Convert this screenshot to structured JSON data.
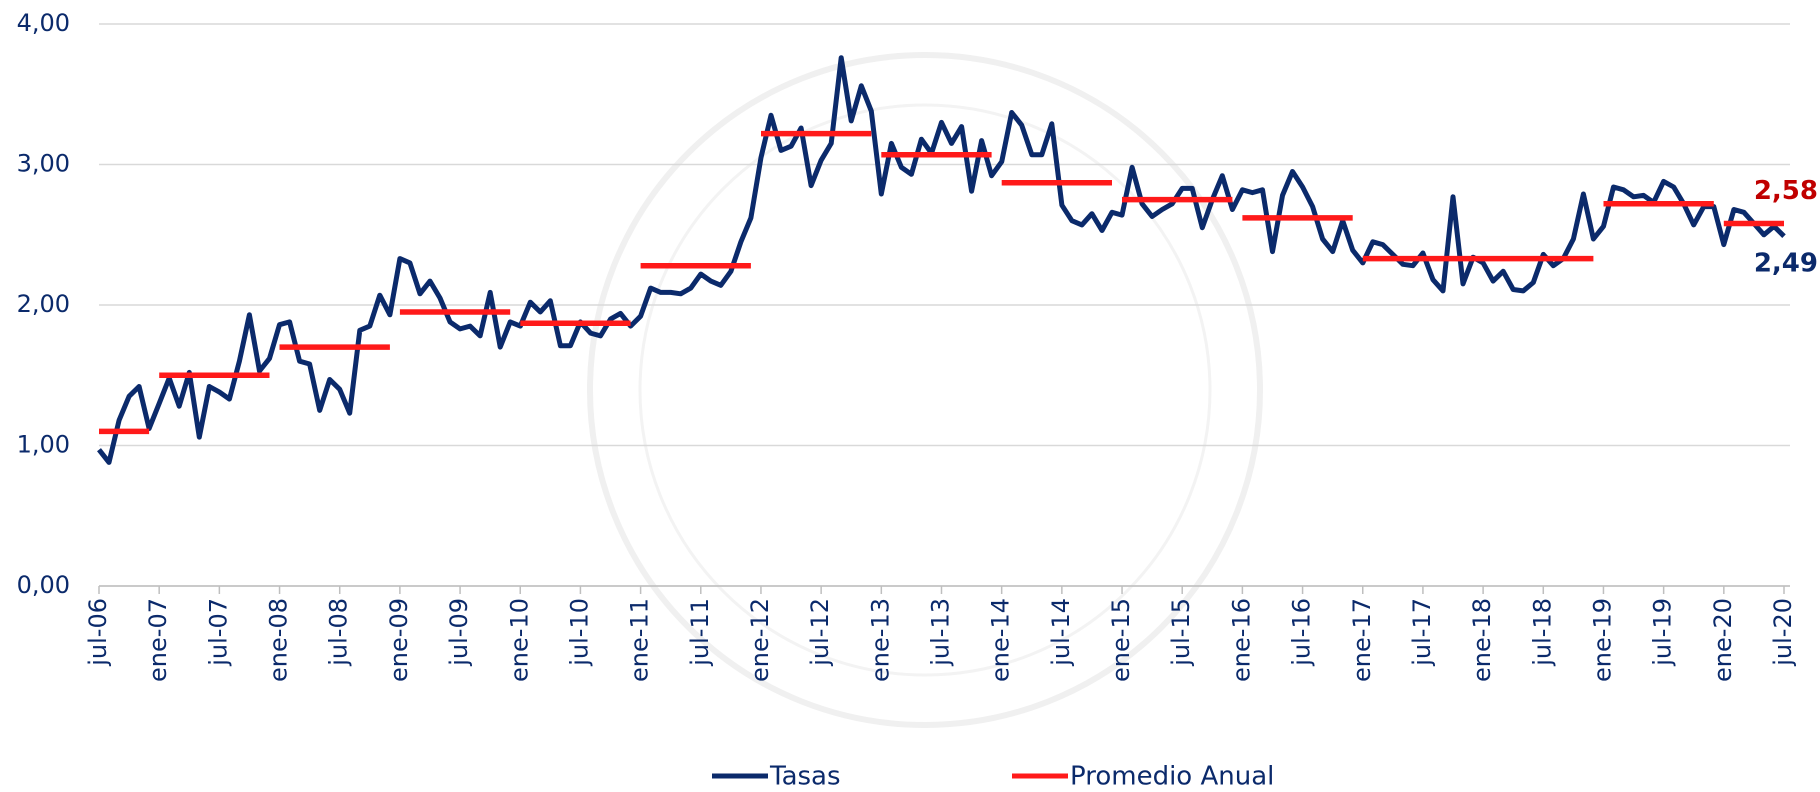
{
  "chart_data": {
    "type": "line",
    "categories": [
      "jul-06",
      null,
      null,
      null,
      null,
      null,
      "ene-07",
      null,
      null,
      null,
      null,
      null,
      "jul-07",
      null,
      null,
      null,
      null,
      null,
      "ene-08",
      null,
      null,
      null,
      null,
      null,
      "jul-08",
      null,
      null,
      null,
      null,
      null,
      "ene-09",
      null,
      null,
      null,
      null,
      null,
      "jul-09",
      null,
      null,
      null,
      null,
      null,
      "ene-10",
      null,
      null,
      null,
      null,
      null,
      "jul-10",
      null,
      null,
      null,
      null,
      null,
      "ene-11",
      null,
      null,
      null,
      null,
      null,
      "jul-11",
      null,
      null,
      null,
      null,
      null,
      "ene-12",
      null,
      null,
      null,
      null,
      null,
      "jul-12",
      null,
      null,
      null,
      null,
      null,
      "ene-13",
      null,
      null,
      null,
      null,
      null,
      "jul-13",
      null,
      null,
      null,
      null,
      null,
      "ene-14",
      null,
      null,
      null,
      null,
      null,
      "jul-14",
      null,
      null,
      null,
      null,
      null,
      "ene-15",
      null,
      null,
      null,
      null,
      null,
      "jul-15",
      null,
      null,
      null,
      null,
      null,
      "ene-16",
      null,
      null,
      null,
      null,
      null,
      "jul-16",
      null,
      null,
      null,
      null,
      null,
      "ene-17",
      null,
      null,
      null,
      null,
      null,
      "jul-17",
      null,
      null,
      null,
      null,
      null,
      "ene-18",
      null,
      null,
      null,
      null,
      null,
      "jul-18",
      null,
      null,
      null,
      null,
      null,
      "ene-19",
      null,
      null,
      null,
      null,
      null,
      "jul-19",
      null,
      null,
      null,
      null,
      null,
      "ene-20",
      null,
      null,
      null,
      null,
      null,
      "jul-20"
    ],
    "series": [
      {
        "name": "Tasas",
        "color": "#0b2a6b",
        "label_color": "#0b2a6b",
        "values": [
          0.97,
          0.88,
          1.18,
          1.35,
          1.42,
          1.12,
          1.3,
          1.48,
          1.28,
          1.52,
          1.06,
          1.42,
          1.38,
          1.33,
          1.6,
          1.93,
          1.53,
          1.62,
          1.86,
          1.88,
          1.6,
          1.58,
          1.25,
          1.47,
          1.4,
          1.23,
          1.82,
          1.85,
          2.07,
          1.93,
          2.33,
          2.3,
          2.08,
          2.17,
          2.05,
          1.88,
          1.83,
          1.85,
          1.78,
          2.09,
          1.7,
          1.88,
          1.85,
          2.02,
          1.95,
          2.03,
          1.71,
          1.71,
          1.88,
          1.8,
          1.78,
          1.9,
          1.94,
          1.85,
          1.92,
          2.12,
          2.09,
          2.09,
          2.08,
          2.12,
          2.22,
          2.17,
          2.14,
          2.24,
          2.45,
          2.62,
          3.05,
          3.35,
          3.1,
          3.13,
          3.26,
          2.85,
          3.03,
          3.15,
          3.76,
          3.31,
          3.56,
          3.38,
          2.79,
          3.15,
          2.98,
          2.93,
          3.18,
          3.08,
          3.3,
          3.15,
          3.27,
          2.81,
          3.17,
          2.92,
          3.02,
          3.37,
          3.28,
          3.07,
          3.07,
          3.29,
          2.71,
          2.6,
          2.57,
          2.65,
          2.53,
          2.66,
          2.64,
          2.98,
          2.72,
          2.63,
          2.68,
          2.72,
          2.83,
          2.83,
          2.55,
          2.75,
          2.92,
          2.68,
          2.82,
          2.8,
          2.82,
          2.38,
          2.78,
          2.95,
          2.84,
          2.7,
          2.47,
          2.38,
          2.6,
          2.39,
          2.3,
          2.45,
          2.43,
          2.36,
          2.29,
          2.28,
          2.37,
          2.18,
          2.1,
          2.77,
          2.15,
          2.34,
          2.3,
          2.17,
          2.24,
          2.11,
          2.1,
          2.16,
          2.36,
          2.28,
          2.33,
          2.47,
          2.79,
          2.47,
          2.56,
          2.84,
          2.82,
          2.77,
          2.78,
          2.73,
          2.88,
          2.84,
          2.72,
          2.57,
          2.7,
          2.7,
          2.43,
          2.68,
          2.66,
          2.58,
          2.5,
          2.56,
          2.49
        ],
        "value_labels": [
          null,
          null,
          null,
          null,
          null,
          null,
          null,
          null,
          null,
          null,
          null,
          null,
          null,
          null,
          null,
          null,
          null,
          null,
          null,
          null,
          null,
          null,
          null,
          null,
          null,
          null,
          null,
          null,
          null,
          null,
          null,
          null,
          null,
          null,
          null,
          null,
          null,
          null,
          null,
          null,
          null,
          null,
          null,
          null,
          null,
          null,
          null,
          null,
          null,
          null,
          null,
          null,
          null,
          null,
          null,
          null,
          null,
          null,
          null,
          null,
          null,
          null,
          null,
          null,
          null,
          null,
          null,
          null,
          null,
          null,
          null,
          null,
          null,
          null,
          null,
          null,
          null,
          null,
          null,
          null,
          null,
          null,
          null,
          null,
          null,
          null,
          null,
          null,
          null,
          null,
          null,
          null,
          null,
          null,
          null,
          null,
          null,
          null,
          null,
          null,
          null,
          null,
          null,
          null,
          null,
          null,
          null,
          null,
          null,
          null,
          null,
          null,
          null,
          null,
          null,
          null,
          null,
          null,
          null,
          null,
          null,
          null,
          null,
          null,
          null,
          null,
          null,
          null,
          null,
          null,
          null,
          null,
          null,
          null,
          null,
          null,
          null,
          null,
          null,
          null,
          null,
          null,
          null,
          null,
          null,
          null,
          null,
          null,
          null,
          null,
          null,
          null,
          null,
          null,
          null,
          null,
          null,
          null,
          null,
          null,
          null,
          null,
          null,
          null,
          null,
          null,
          null,
          null,
          "2,49"
        ]
      },
      {
        "name": "Promedio Anual",
        "color": "#ff1a1a",
        "label_color": "#c00000",
        "values": [
          1.1,
          1.1,
          1.1,
          1.1,
          1.1,
          1.1,
          1.5,
          1.5,
          1.5,
          1.5,
          1.5,
          1.5,
          1.5,
          1.5,
          1.5,
          1.5,
          1.5,
          1.5,
          1.7,
          1.7,
          1.7,
          1.7,
          1.7,
          1.7,
          1.7,
          1.7,
          1.7,
          1.7,
          1.7,
          1.7,
          1.95,
          1.95,
          1.95,
          1.95,
          1.95,
          1.95,
          1.95,
          1.95,
          1.95,
          1.95,
          1.95,
          1.95,
          1.87,
          1.87,
          1.87,
          1.87,
          1.87,
          1.87,
          1.87,
          1.87,
          1.87,
          1.87,
          1.87,
          1.87,
          2.28,
          2.28,
          2.28,
          2.28,
          2.28,
          2.28,
          2.28,
          2.28,
          2.28,
          2.28,
          2.28,
          2.28,
          3.22,
          3.22,
          3.22,
          3.22,
          3.22,
          3.22,
          3.22,
          3.22,
          3.22,
          3.22,
          3.22,
          3.22,
          3.07,
          3.07,
          3.07,
          3.07,
          3.07,
          3.07,
          3.07,
          3.07,
          3.07,
          3.07,
          3.07,
          3.07,
          2.87,
          2.87,
          2.87,
          2.87,
          2.87,
          2.87,
          2.87,
          2.87,
          2.87,
          2.87,
          2.87,
          2.87,
          2.75,
          2.75,
          2.75,
          2.75,
          2.75,
          2.75,
          2.75,
          2.75,
          2.75,
          2.75,
          2.75,
          2.75,
          2.62,
          2.62,
          2.62,
          2.62,
          2.62,
          2.62,
          2.62,
          2.62,
          2.62,
          2.62,
          2.62,
          2.62,
          2.33,
          2.33,
          2.33,
          2.33,
          2.33,
          2.33,
          2.33,
          2.33,
          2.33,
          2.33,
          2.33,
          2.33,
          2.33,
          2.33,
          2.33,
          2.33,
          2.33,
          2.33,
          2.33,
          2.33,
          2.33,
          2.33,
          2.33,
          2.33,
          2.72,
          2.72,
          2.72,
          2.72,
          2.72,
          2.72,
          2.72,
          2.72,
          2.72,
          2.72,
          2.72,
          2.72,
          2.58,
          2.58,
          2.58,
          2.58,
          2.58,
          2.58,
          2.58
        ],
        "value_labels": [
          null,
          null,
          null,
          null,
          null,
          null,
          null,
          null,
          null,
          null,
          null,
          null,
          null,
          null,
          null,
          null,
          null,
          null,
          null,
          null,
          null,
          null,
          null,
          null,
          null,
          null,
          null,
          null,
          null,
          null,
          null,
          null,
          null,
          null,
          null,
          null,
          null,
          null,
          null,
          null,
          null,
          null,
          null,
          null,
          null,
          null,
          null,
          null,
          null,
          null,
          null,
          null,
          null,
          null,
          null,
          null,
          null,
          null,
          null,
          null,
          null,
          null,
          null,
          null,
          null,
          null,
          null,
          null,
          null,
          null,
          null,
          null,
          null,
          null,
          null,
          null,
          null,
          null,
          null,
          null,
          null,
          null,
          null,
          null,
          null,
          null,
          null,
          null,
          null,
          null,
          null,
          null,
          null,
          null,
          null,
          null,
          null,
          null,
          null,
          null,
          null,
          null,
          null,
          null,
          null,
          null,
          null,
          null,
          null,
          null,
          null,
          null,
          null,
          null,
          null,
          null,
          null,
          null,
          null,
          null,
          null,
          null,
          null,
          null,
          null,
          null,
          null,
          null,
          null,
          null,
          null,
          null,
          null,
          null,
          null,
          null,
          null,
          null,
          null,
          null,
          null,
          null,
          null,
          null,
          null,
          null,
          null,
          null,
          null,
          null,
          null,
          null,
          null,
          null,
          null,
          null,
          null,
          null,
          null,
          null,
          null,
          null,
          null,
          null,
          null,
          null,
          null,
          null,
          "2,58"
        ]
      }
    ],
    "ylim": [
      0,
      4
    ],
    "yticks": [
      {
        "value": 0,
        "label": "0,00"
      },
      {
        "value": 1,
        "label": "1,00"
      },
      {
        "value": 2,
        "label": "2,00"
      },
      {
        "value": 3,
        "label": "3,00"
      },
      {
        "value": 4,
        "label": "4,00"
      }
    ],
    "grid": true,
    "legend": "bottom"
  }
}
